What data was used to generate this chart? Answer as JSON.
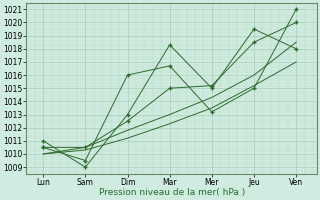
{
  "x_labels": [
    "Lun",
    "Sam",
    "Dim",
    "Mar",
    "Mer",
    "Jeu",
    "Ven"
  ],
  "x_positions": [
    0,
    1,
    2,
    3,
    4,
    5,
    6
  ],
  "series1": [
    1011.0,
    1009.0,
    1013.0,
    1018.3,
    1015.0,
    1019.5,
    1018.0
  ],
  "series2": [
    1010.5,
    1009.5,
    1016.0,
    1016.7,
    1013.2,
    1015.0,
    1021.0
  ],
  "series3": [
    1010.5,
    1010.5,
    1012.5,
    1015.0,
    1015.2,
    1018.5,
    1020.0
  ],
  "trend1": [
    1010.0,
    1010.3,
    1011.2,
    1012.3,
    1013.5,
    1015.2,
    1017.0
  ],
  "trend2": [
    1010.0,
    1010.5,
    1011.8,
    1013.0,
    1014.3,
    1016.0,
    1018.5
  ],
  "line_color": "#2d6a2d",
  "bg_color": "#d0ece0",
  "grid_major_color": "#a8cdb8",
  "grid_minor_color": "#b8dac8",
  "ylabel": "Pression niveau de la mer( hPa )",
  "ylim_min": 1008.5,
  "ylim_max": 1021.5,
  "yticks": [
    1009,
    1010,
    1011,
    1012,
    1013,
    1014,
    1015,
    1016,
    1017,
    1018,
    1019,
    1020,
    1021
  ],
  "xlabel_fontsize": 6.5,
  "tick_fontsize": 5.5,
  "marker": "P"
}
